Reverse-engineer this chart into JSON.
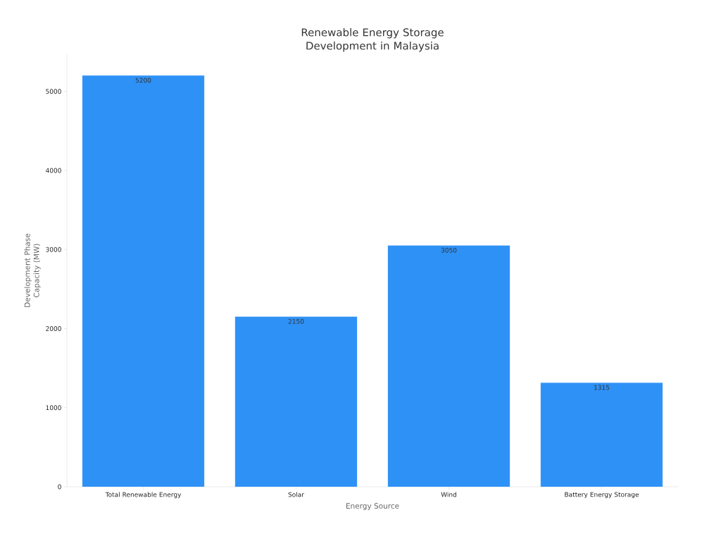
{
  "chart_data": {
    "type": "bar",
    "title": "Renewable Energy Storage Development in Malaysia",
    "xlabel": "Energy Source",
    "ylabel": "Development Phase Capacity (MW)",
    "categories": [
      "Total Renewable Energy",
      "Solar",
      "Wind",
      "Battery Energy Storage"
    ],
    "values": [
      5200,
      2150,
      3050,
      1315
    ],
    "color": "#2e91f6",
    "ylim": [
      0,
      5470
    ],
    "yticks": [
      0,
      1000,
      2000,
      3000,
      4000,
      5000
    ],
    "data_labels": true,
    "grid": false
  }
}
